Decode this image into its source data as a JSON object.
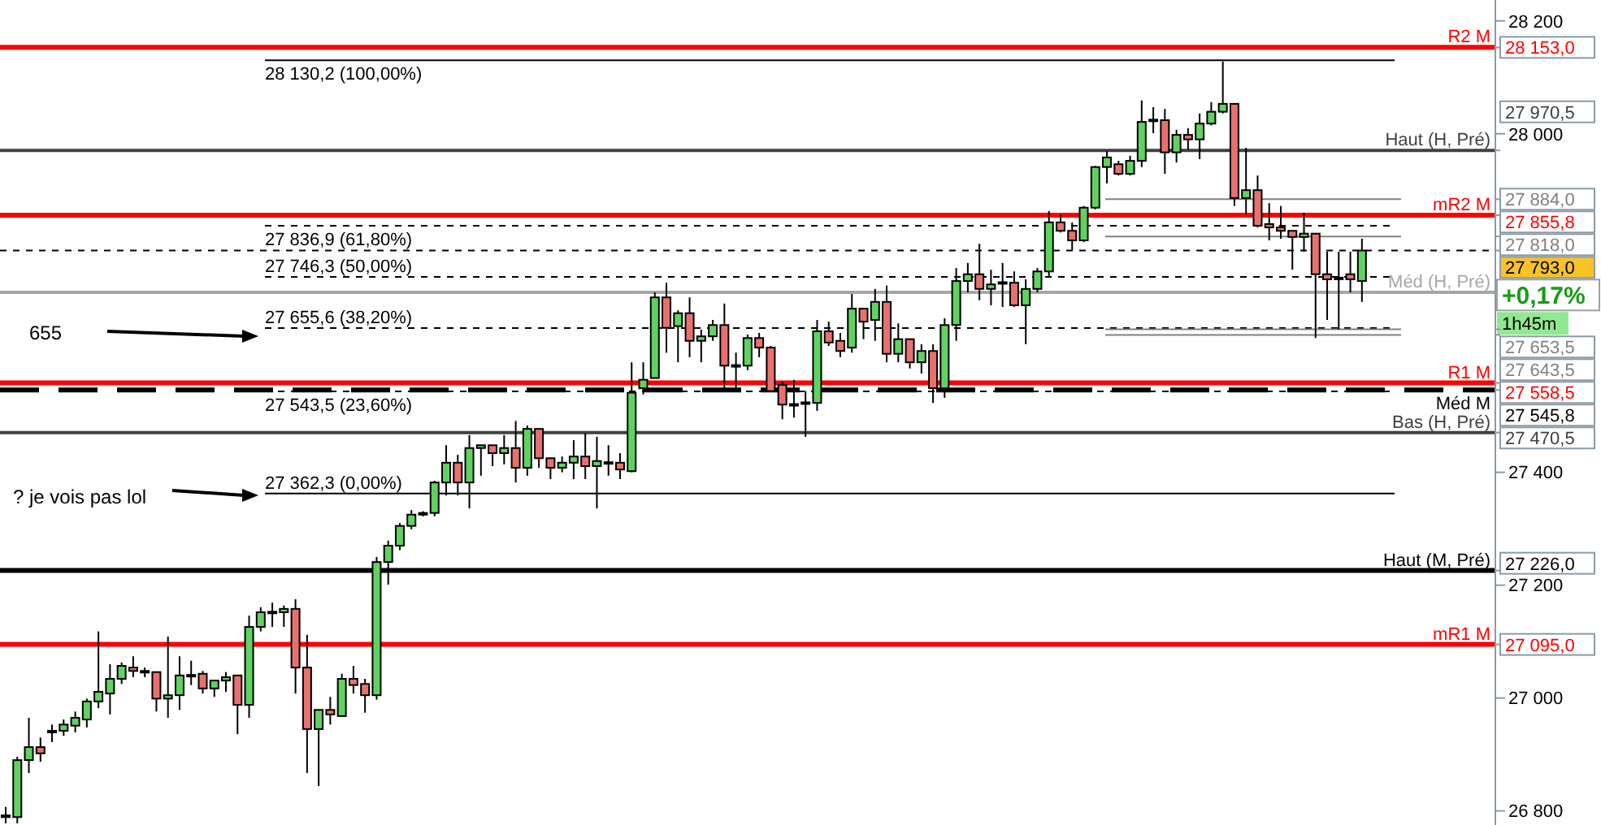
{
  "chart_data": {
    "type": "candlestick",
    "categories": [
      null,
      null,
      null,
      null,
      null,
      null,
      null,
      null,
      null,
      null,
      null,
      null,
      null,
      null,
      null,
      null,
      null,
      null,
      null,
      null,
      null,
      null,
      null,
      null,
      null,
      null,
      null,
      null,
      null,
      null,
      null,
      null,
      null,
      null,
      null,
      null,
      null,
      null,
      null,
      null,
      null,
      null,
      null,
      null,
      null,
      null,
      null,
      null,
      null,
      null,
      null,
      null,
      null,
      null,
      null,
      null,
      null,
      null,
      null,
      null,
      null,
      null,
      null,
      null,
      null,
      null,
      null,
      null,
      null,
      null,
      null,
      null,
      null,
      null,
      null,
      null,
      null,
      null,
      null,
      null,
      null,
      null,
      null,
      null,
      null,
      null,
      null,
      null,
      null,
      null,
      null,
      null,
      null,
      null,
      null,
      null,
      null,
      null,
      null,
      null,
      null,
      null,
      null,
      null,
      null,
      null,
      null,
      null,
      null,
      null,
      null,
      null,
      null,
      null,
      null,
      null,
      null,
      null,
      null,
      null,
      null,
      null,
      null,
      null,
      null,
      null,
      null,
      null,
      null
    ],
    "ohlc": [
      [
        26789,
        26807,
        26778,
        26792
      ],
      [
        26789,
        26896,
        26778,
        26890
      ],
      [
        26890,
        26965,
        26867,
        26913
      ],
      [
        26913,
        26930,
        26887,
        26902
      ],
      [
        26939,
        26953,
        26922,
        26942
      ],
      [
        26942,
        26962,
        26933,
        26953
      ],
      [
        26951,
        26976,
        26939,
        26965
      ],
      [
        26962,
        26999,
        26948,
        26994
      ],
      [
        26994,
        27118,
        26982,
        27011
      ],
      [
        27008,
        27060,
        26971,
        27034
      ],
      [
        27034,
        27063,
        27025,
        27057
      ],
      [
        27054,
        27074,
        27037,
        27048
      ],
      [
        27048,
        27054,
        27037,
        27046
      ],
      [
        27046,
        27046,
        26976,
        26999
      ],
      [
        26999,
        27109,
        26965,
        27005
      ],
      [
        27005,
        27074,
        26979,
        27040
      ],
      [
        27040,
        27066,
        27023,
        27041
      ],
      [
        27043,
        27048,
        27008,
        27017
      ],
      [
        27017,
        27031,
        27002,
        27031
      ],
      [
        27031,
        27046,
        27011,
        27037
      ],
      [
        27040,
        27040,
        26936,
        26988
      ],
      [
        26988,
        27146,
        26965,
        27126
      ],
      [
        27126,
        27161,
        27118,
        27152
      ],
      [
        27152,
        27169,
        27126,
        27153
      ],
      [
        27152,
        27164,
        27126,
        27158
      ],
      [
        27158,
        27175,
        27008,
        27054
      ],
      [
        27054,
        27112,
        26867,
        26945
      ],
      [
        26945,
        26979,
        26844,
        26979
      ],
      [
        26979,
        27002,
        26953,
        26971
      ],
      [
        26968,
        27043,
        26968,
        27034
      ],
      [
        27034,
        27057,
        27008,
        27023
      ],
      [
        27025,
        27034,
        26974,
        27005
      ],
      [
        27005,
        27250,
        26997,
        27241
      ],
      [
        27241,
        27279,
        27201,
        27270
      ],
      [
        27270,
        27310,
        27262,
        27305
      ],
      [
        27305,
        27333,
        27299,
        27325
      ],
      [
        27325,
        27331,
        27322,
        27328
      ],
      [
        27328,
        27385,
        27322,
        27382
      ],
      [
        27382,
        27448,
        27359,
        27417
      ],
      [
        27417,
        27431,
        27359,
        27382
      ],
      [
        27382,
        27466,
        27336,
        27443
      ],
      [
        27443,
        27448,
        27394,
        27448
      ],
      [
        27448,
        27448,
        27411,
        27434
      ],
      [
        27434,
        27466,
        27414,
        27443
      ],
      [
        27443,
        27491,
        27382,
        27408
      ],
      [
        27408,
        27483,
        27394,
        27477
      ],
      [
        27477,
        27477,
        27408,
        27425
      ],
      [
        27425,
        27425,
        27388,
        27408
      ],
      [
        27408,
        27428,
        27400,
        27417
      ],
      [
        27417,
        27457,
        27388,
        27428
      ],
      [
        27428,
        27469,
        27388,
        27411
      ],
      [
        27411,
        27463,
        27336,
        27420
      ],
      [
        27417,
        27448,
        27394,
        27418
      ],
      [
        27417,
        27434,
        27388,
        27405
      ],
      [
        27402,
        27595,
        27400,
        27541
      ],
      [
        27549,
        27595,
        27538,
        27564
      ],
      [
        27567,
        27719,
        27567,
        27710
      ],
      [
        27710,
        27736,
        27612,
        27656
      ],
      [
        27659,
        27687,
        27595,
        27682
      ],
      [
        27682,
        27710,
        27604,
        27633
      ],
      [
        27633,
        27653,
        27595,
        27641
      ],
      [
        27641,
        27670,
        27633,
        27661
      ],
      [
        27661,
        27699,
        27544,
        27589
      ],
      [
        27589,
        27612,
        27544,
        27590
      ],
      [
        27589,
        27644,
        27581,
        27638
      ],
      [
        27638,
        27647,
        27604,
        27621
      ],
      [
        27621,
        27624,
        27544,
        27544
      ],
      [
        27555,
        27561,
        27494,
        27520
      ],
      [
        27520,
        27564,
        27497,
        27521
      ],
      [
        27523,
        27544,
        27463,
        27524
      ],
      [
        27523,
        27670,
        27509,
        27650
      ],
      [
        27650,
        27667,
        27624,
        27630
      ],
      [
        27633,
        27647,
        27604,
        27615
      ],
      [
        27621,
        27716,
        27612,
        27690
      ],
      [
        27690,
        27690,
        27636,
        27667
      ],
      [
        27670,
        27725,
        27633,
        27702
      ],
      [
        27702,
        27731,
        27595,
        27610
      ],
      [
        27610,
        27664,
        27595,
        27636
      ],
      [
        27636,
        27636,
        27584,
        27595
      ],
      [
        27595,
        27627,
        27575,
        27615
      ],
      [
        27615,
        27627,
        27523,
        27549
      ],
      [
        27549,
        27673,
        27532,
        27661
      ],
      [
        27661,
        27762,
        27633,
        27739
      ],
      [
        27739,
        27771,
        27719,
        27751
      ],
      [
        27751,
        27805,
        27705,
        27725
      ],
      [
        27725,
        27759,
        27696,
        27733
      ],
      [
        27736,
        27771,
        27693,
        27737
      ],
      [
        27736,
        27756,
        27693,
        27696
      ],
      [
        27696,
        27742,
        27627,
        27725
      ],
      [
        27725,
        27762,
        27719,
        27756
      ],
      [
        27756,
        27863,
        27748,
        27843
      ],
      [
        27843,
        27857,
        27825,
        27828
      ],
      [
        27828,
        27843,
        27794,
        27811
      ],
      [
        27811,
        27872,
        27808,
        27869
      ],
      [
        27869,
        27943,
        27866,
        27941
      ],
      [
        27941,
        27969,
        27912,
        27958
      ],
      [
        27946,
        27952,
        27926,
        27929
      ],
      [
        27929,
        27961,
        27926,
        27952
      ],
      [
        27952,
        28059,
        27941,
        28021
      ],
      [
        28024,
        28047,
        28001,
        28025
      ],
      [
        28024,
        28044,
        27929,
        27967
      ],
      [
        27967,
        28007,
        27949,
        27998
      ],
      [
        27998,
        28010,
        27972,
        27990
      ],
      [
        27990,
        28036,
        27955,
        28018
      ],
      [
        28018,
        28056,
        28015,
        28039
      ],
      [
        28039,
        28128,
        28036,
        28053
      ],
      [
        28053,
        28053,
        27872,
        27886
      ],
      [
        27886,
        27975,
        27857,
        27900
      ],
      [
        27900,
        27926,
        27834,
        27837
      ],
      [
        27840,
        27877,
        27811,
        27834
      ],
      [
        27834,
        27872,
        27814,
        27828
      ],
      [
        27828,
        27828,
        27759,
        27817
      ],
      [
        27817,
        27860,
        27791,
        27823
      ],
      [
        27823,
        27823,
        27638,
        27751
      ],
      [
        27751,
        27791,
        27670,
        27742
      ],
      [
        27745,
        27791,
        27653,
        27744
      ],
      [
        27751,
        27791,
        27719,
        27742
      ],
      [
        27739,
        27814,
        27702,
        27793
      ],
      null,
      null,
      null,
      null,
      null,
      null,
      null,
      null,
      null,
      null,
      null
    ],
    "ylim": [
      26775,
      28237
    ],
    "yticks": [
      {
        "value": 26800,
        "label": "26 800"
      },
      {
        "value": 27000,
        "label": "27 000"
      },
      {
        "value": 27200,
        "label": "27 200"
      },
      {
        "value": 27400,
        "label": "27 400"
      },
      {
        "value": 28000,
        "label": "28 000"
      },
      {
        "value": 28200,
        "label": "28 200"
      }
    ],
    "tick_labels": "y",
    "ref_lines": [
      {
        "axis": "y",
        "value": 28130.2,
        "label": "28 130,2 (100,00%)",
        "color": "#000000",
        "line_style": "solid"
      },
      {
        "axis": "y",
        "value": 27836.9,
        "label": "27 836,9 (61,80%)",
        "color": "#000000",
        "line_style": "dashed"
      },
      {
        "axis": "y",
        "value": 27746.3,
        "label": "27 746,3 (50,00%)",
        "color": "#000000",
        "line_style": "dashed"
      },
      {
        "axis": "y",
        "value": 27655.6,
        "label": "27 655,6 (38,20%)",
        "color": "#000000",
        "line_style": "dashed"
      },
      {
        "axis": "y",
        "value": 27543.5,
        "label": "27 543,5 (23,60%)",
        "color": "#000000",
        "line_style": "dashed"
      },
      {
        "axis": "y",
        "value": 27362.3,
        "label": "27 362,3 (0,00%)",
        "color": "#000000",
        "line_style": "solid"
      },
      {
        "axis": "y",
        "value": 28153,
        "label": "R2 M",
        "color": "#ff0000",
        "line_style": "solid"
      },
      {
        "axis": "y",
        "value": 27855.8,
        "label": "mR2 M",
        "color": "#ff0000",
        "line_style": "solid"
      },
      {
        "axis": "y",
        "value": 27558.5,
        "label": "R1 M",
        "color": "#ff0000",
        "line_style": "solid"
      },
      {
        "axis": "y",
        "value": 27095,
        "label": "mR1 M",
        "color": "#ff0000",
        "line_style": "solid"
      },
      {
        "axis": "y",
        "value": 27970.5,
        "label": "Haut (H, Pré)",
        "color": "#404040",
        "line_style": "solid"
      },
      {
        "axis": "y",
        "value": 27545.8,
        "label": "Méd M",
        "color": "#000000",
        "line_style": "dashed"
      },
      {
        "axis": "y",
        "value": 27470.5,
        "label": "Bas (H, Pré)",
        "color": "#404040",
        "line_style": "solid"
      },
      {
        "axis": "y",
        "value": 27226,
        "label": "Haut (M, Pré)",
        "color": "#000000",
        "line_style": "solid"
      },
      {
        "axis": "y",
        "value": 27884,
        "color": "#808080",
        "line_style": "solid"
      },
      {
        "axis": "y",
        "value": 27818,
        "color": "#808080",
        "line_style": "solid"
      },
      {
        "axis": "y",
        "value": 27653.5,
        "color": "#808080",
        "line_style": "solid"
      },
      {
        "axis": "y",
        "value": 27643.5,
        "color": "#808080",
        "line_style": "solid"
      },
      {
        "axis": "y",
        "value": 27793,
        "color": "#000000",
        "line_style": "dashed"
      },
      {
        "axis": "y",
        "value": 27719,
        "label": "Méd (H, Pré)",
        "color": "#a6a6a6",
        "line_style": "solid"
      }
    ],
    "annotations": [
      "655",
      "? je vois pas lol",
      "+0,17%",
      "1h45m",
      "28 153,0",
      "27 855,8",
      "27 558,5",
      "27 095,0",
      "27 970,5",
      "27 545,8",
      "27 470,5",
      "27 226,0",
      "27 884,0",
      "27 818,0",
      "27 653,5",
      "27 643,5",
      "27 793,0"
    ]
  }
}
